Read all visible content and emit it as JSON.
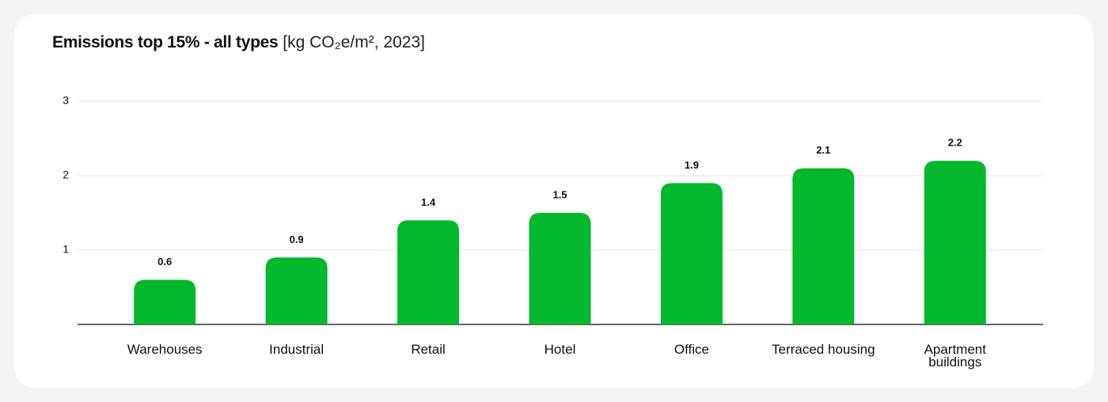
{
  "chart_data": {
    "type": "bar",
    "title": "Emissions top 15% - all types",
    "unit": "[kg CO₂e/m², 2023]",
    "categories": [
      "Warehouses",
      "Industrial",
      "Retail",
      "Hotel",
      "Office",
      "Terraced housing",
      "Apartment buildings"
    ],
    "values": [
      0.6,
      0.9,
      1.4,
      1.5,
      1.9,
      2.1,
      2.2
    ],
    "color": "#02b82c",
    "ylim": [
      0,
      3
    ],
    "yticks": [
      1,
      2,
      3
    ],
    "grid": true
  }
}
